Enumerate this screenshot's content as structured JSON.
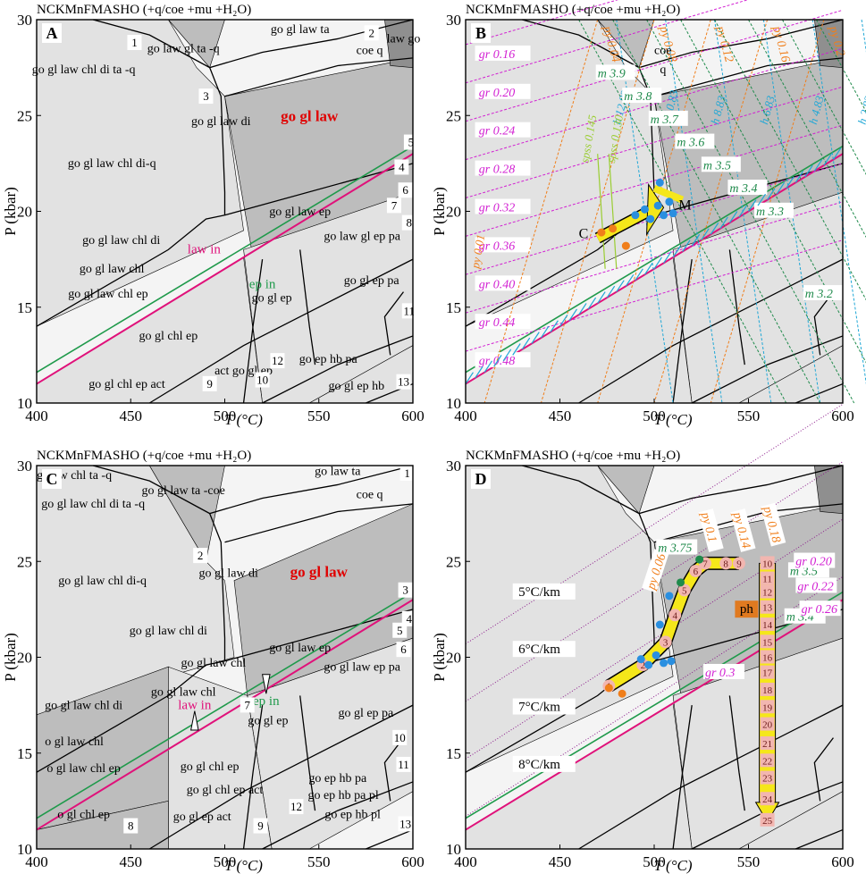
{
  "figure_title_rows": [
    "NCKMnFMASHO (+q/coe +mu +H₂O)"
  ],
  "chart_data": [
    {
      "type": "pseudosection",
      "panel": "A",
      "title": "NCKMnFMASHO (+q/coe +mu +H₂O)",
      "xlabel": "T (°C)",
      "ylabel": "P (kbar)",
      "xlim": [
        400,
        600
      ],
      "ylim": [
        10,
        30
      ],
      "xticks": [
        400,
        450,
        500,
        550,
        600
      ],
      "yticks": [
        10,
        15,
        20,
        25,
        30
      ],
      "field_labels": [
        {
          "text": "go gl law chl di ta -q",
          "T": 425,
          "P": 27.2
        },
        {
          "text": "go law gl ta -q",
          "T": 478,
          "P": 28.3
        },
        {
          "text": "go gl law ta",
          "T": 540,
          "P": 29.3
        },
        {
          "text": "coe q",
          "T": 577,
          "P": 28.2
        },
        {
          "text": "law go",
          "T": 595,
          "P": 28.8
        },
        {
          "text": "go gl law di",
          "T": 498,
          "P": 24.5
        },
        {
          "text": "go gl law",
          "T": 545,
          "P": 24.7,
          "emphasis": true
        },
        {
          "text": "go gl law chl di-q",
          "T": 440,
          "P": 22.3
        },
        {
          "text": "go gl law chl di",
          "T": 445,
          "P": 18.3
        },
        {
          "text": "go gl law ep",
          "T": 540,
          "P": 19.8
        },
        {
          "text": "go law gl ep pa",
          "T": 573,
          "P": 18.5
        },
        {
          "text": "go gl law chl",
          "T": 440,
          "P": 16.8
        },
        {
          "text": "go gl law chl ep",
          "T": 438,
          "P": 15.5
        },
        {
          "text": "go gl ep",
          "T": 525,
          "P": 15.3
        },
        {
          "text": "go gl ep pa",
          "T": 578,
          "P": 16.2
        },
        {
          "text": "go gl chl ep",
          "T": 470,
          "P": 13.3
        },
        {
          "text": "go gl chl ep act",
          "T": 448,
          "P": 10.8
        },
        {
          "text": "act go gl ep",
          "T": 510,
          "P": 11.5
        },
        {
          "text": "go ep hb pa",
          "T": 555,
          "P": 12.1
        },
        {
          "text": "go gl ep hb",
          "T": 570,
          "P": 10.7
        }
      ],
      "reaction_labels": [
        {
          "text": "law in",
          "color": "#e0117a",
          "T": 489,
          "P": 17.8
        },
        {
          "text": "ep in",
          "color": "#1f9a4b",
          "T": 520,
          "P": 16.0
        }
      ],
      "numbered_fields": [
        "1",
        "2",
        "3",
        "4",
        "5",
        "6",
        "7",
        "8",
        "9",
        "10",
        "11",
        "12",
        "13"
      ],
      "highlight_color": "#e00000"
    },
    {
      "type": "pseudosection-isopleths",
      "panel": "B",
      "title": "NCKMnFMASHO (+q/coe +mu +H₂O)",
      "xlabel": "T (°C)",
      "ylabel": "P (kbar)",
      "xlim": [
        400,
        600
      ],
      "ylim": [
        10,
        30
      ],
      "xticks": [
        400,
        450,
        500,
        550,
        600
      ],
      "yticks": [
        10,
        15,
        20,
        25,
        30
      ],
      "isopleth_series": [
        {
          "family": "gr",
          "color": "#d21fd2",
          "labels": [
            "gr 0.16",
            "gr 0.20",
            "gr 0.24",
            "gr 0.28",
            "gr 0.32",
            "gr 0.36",
            "gr 0.40",
            "gr 0.44",
            "gr 0.48"
          ]
        },
        {
          "family": "py",
          "color": "#f07e1a",
          "labels": [
            "py 0.04",
            "py 0.08",
            "py 0.12",
            "py 0.16",
            "py 0.2",
            "py 0.01"
          ]
        },
        {
          "family": "m",
          "color": "#1f8a4b",
          "labels": [
            "m 3.9",
            "m 3.8",
            "m 3.7",
            "m 3.6",
            "m 3.5",
            "m 3.4",
            "m 3.3",
            "m 3.2"
          ]
        },
        {
          "family": "h",
          "color": "#1fa7d6",
          "labels": [
            "h 12.83",
            "h 10.83",
            "h 8.83",
            "h 6.83",
            "h 4.83",
            "h 2.83"
          ]
        },
        {
          "family": "spss",
          "color": "#9acd32",
          "labels": [
            "spss 0.145",
            "spss 0.130"
          ]
        }
      ],
      "point_labels": [
        "C",
        "M"
      ],
      "extra_labels": [
        "coe",
        "q"
      ],
      "sample_points": [
        {
          "T": 472,
          "P": 18.9,
          "color": "#f07e1a"
        },
        {
          "T": 478,
          "P": 19.1,
          "color": "#f07e1a"
        },
        {
          "T": 485,
          "P": 18.2,
          "color": "#f07e1a"
        },
        {
          "T": 490,
          "P": 19.8,
          "color": "#2a8fe0"
        },
        {
          "T": 495,
          "P": 20.1,
          "color": "#2a8fe0"
        },
        {
          "T": 498,
          "P": 19.6,
          "color": "#2a8fe0"
        },
        {
          "T": 502,
          "P": 20.3,
          "color": "#2a8fe0"
        },
        {
          "T": 505,
          "P": 19.8,
          "color": "#2a8fe0"
        },
        {
          "T": 508,
          "P": 20.5,
          "color": "#2a8fe0"
        },
        {
          "T": 503,
          "P": 21.5,
          "color": "#2a8fe0"
        },
        {
          "T": 510,
          "P": 19.9,
          "color": "#2a8fe0"
        }
      ]
    },
    {
      "type": "pseudosection",
      "panel": "C",
      "title": "NCKMnFMASHO (+q/coe +mu +H₂O)",
      "xlabel": "T (°C)",
      "ylabel": "P (kbar)",
      "xlim": [
        400,
        600
      ],
      "ylim": [
        10,
        30
      ],
      "xticks": [
        400,
        450,
        500,
        550,
        600
      ],
      "yticks": [
        10,
        15,
        20,
        25,
        30
      ],
      "field_labels": [
        {
          "text": "gl law chl ta -q",
          "T": 420,
          "P": 29.3
        },
        {
          "text": "go gl law ta -coe",
          "T": 478,
          "P": 28.5
        },
        {
          "text": "go law ta",
          "T": 560,
          "P": 29.5
        },
        {
          "text": "coe q",
          "T": 577,
          "P": 28.3
        },
        {
          "text": "go gl law chl di ta -q",
          "T": 430,
          "P": 27.8
        },
        {
          "text": "go gl law di",
          "T": 502,
          "P": 24.2
        },
        {
          "text": "go gl law",
          "T": 550,
          "P": 24.2,
          "emphasis": true
        },
        {
          "text": "go gl law chl di-q",
          "T": 435,
          "P": 23.8
        },
        {
          "text": "go gl law chl di",
          "T": 470,
          "P": 21.2
        },
        {
          "text": "go gl law chl",
          "T": 494,
          "P": 19.5
        },
        {
          "text": "go gl law ep",
          "T": 540,
          "P": 20.3
        },
        {
          "text": "go gl law ep pa",
          "T": 573,
          "P": 19.3
        },
        {
          "text": "go gl law chl di",
          "T": 425,
          "P": 17.3
        },
        {
          "text": "go gl law chl",
          "T": 478,
          "P": 18.0
        },
        {
          "text": "go gl ep",
          "T": 523,
          "P": 16.5
        },
        {
          "text": "go gl ep pa",
          "T": 575,
          "P": 16.9
        },
        {
          "text": "o gl law chl",
          "T": 420,
          "P": 15.4
        },
        {
          "text": "o gl law chl ep",
          "T": 425,
          "P": 14.0
        },
        {
          "text": "go gl chl ep",
          "T": 492,
          "P": 14.1
        },
        {
          "text": "go gl chl ep act",
          "T": 500,
          "P": 12.9
        },
        {
          "text": "go gl ep act",
          "T": 488,
          "P": 11.5
        },
        {
          "text": "o gl chl ep",
          "T": 425,
          "P": 11.6
        },
        {
          "text": "go ep hb pa",
          "T": 560,
          "P": 13.5
        },
        {
          "text": "go ep hb pa pl",
          "T": 563,
          "P": 12.6
        },
        {
          "text": "go ep hb pl",
          "T": 568,
          "P": 11.6
        }
      ],
      "reaction_labels": [
        {
          "text": "law in",
          "color": "#e0117a",
          "T": 484,
          "P": 17.3
        },
        {
          "text": "ep in",
          "color": "#1f9a4b",
          "T": 522,
          "P": 17.5
        }
      ],
      "numbered_fields": [
        "1",
        "2",
        "3",
        "4",
        "5",
        "6",
        "7",
        "8",
        "9",
        "10",
        "11",
        "12",
        "13"
      ],
      "highlight_color": "#e00000"
    },
    {
      "type": "pseudosection-pt-path",
      "panel": "D",
      "title": "NCKMnFMASHO (+q/coe +mu +H₂O)",
      "xlabel": "T (°C)",
      "ylabel": "P (kbar)",
      "xlim": [
        400,
        600
      ],
      "ylim": [
        10,
        30
      ],
      "xticks": [
        400,
        450,
        500,
        550,
        600
      ],
      "yticks": [
        10,
        15,
        20,
        25,
        30
      ],
      "geotherms": [
        "5°C/km",
        "6°C/km",
        "7°C/km",
        "8°C/km"
      ],
      "isopleth_labels": [
        "py 0.06",
        "py 0.1",
        "py 0.14",
        "py 0.18",
        "m 3.75",
        "m 3.5",
        "m 3.4",
        "gr 0.20",
        "gr 0.22",
        "gr 0.26",
        "gr 0.3"
      ],
      "mineral_label": "ph",
      "prograde_steps": [
        {
          "n": "1",
          "T": 476,
          "P": 18.5
        },
        {
          "n": "2",
          "T": 494,
          "P": 19.6
        },
        {
          "n": "3",
          "T": 506,
          "P": 20.8
        },
        {
          "n": "4",
          "T": 511,
          "P": 22.2
        },
        {
          "n": "5",
          "T": 516,
          "P": 23.5
        },
        {
          "n": "6",
          "T": 522,
          "P": 24.5
        },
        {
          "n": "7",
          "T": 527,
          "P": 24.9
        },
        {
          "n": "8",
          "T": 538,
          "P": 24.9
        },
        {
          "n": "9",
          "T": 545,
          "P": 24.9
        }
      ],
      "retrograde_steps": [
        {
          "n": "10",
          "T": 560,
          "P": 24.9
        },
        {
          "n": "11",
          "T": 560,
          "P": 24.1
        },
        {
          "n": "12",
          "T": 560,
          "P": 23.4
        },
        {
          "n": "13",
          "T": 560,
          "P": 22.6
        },
        {
          "n": "14",
          "T": 560,
          "P": 21.7
        },
        {
          "n": "15",
          "T": 560,
          "P": 20.8
        },
        {
          "n": "16",
          "T": 560,
          "P": 20.0
        },
        {
          "n": "17",
          "T": 560,
          "P": 19.2
        },
        {
          "n": "18",
          "T": 560,
          "P": 18.3
        },
        {
          "n": "19",
          "T": 560,
          "P": 17.4
        },
        {
          "n": "20",
          "T": 560,
          "P": 16.5
        },
        {
          "n": "21",
          "T": 560,
          "P": 15.5
        },
        {
          "n": "22",
          "T": 560,
          "P": 14.6
        },
        {
          "n": "23",
          "T": 560,
          "P": 13.7
        },
        {
          "n": "24",
          "T": 560,
          "P": 12.6
        },
        {
          "n": "25",
          "T": 560,
          "P": 11.5
        }
      ],
      "sample_points": [
        {
          "T": 476,
          "P": 18.4,
          "color": "#f07e1a"
        },
        {
          "T": 483,
          "P": 18.1,
          "color": "#f07e1a"
        },
        {
          "T": 493,
          "P": 19.9,
          "color": "#2a8fe0"
        },
        {
          "T": 497,
          "P": 19.6,
          "color": "#2a8fe0"
        },
        {
          "T": 501,
          "P": 20.1,
          "color": "#2a8fe0"
        },
        {
          "T": 505,
          "P": 19.7,
          "color": "#2a8fe0"
        },
        {
          "T": 509,
          "P": 19.8,
          "color": "#2a8fe0"
        },
        {
          "T": 503,
          "P": 21.7,
          "color": "#2a8fe0"
        },
        {
          "T": 508,
          "P": 23.2,
          "color": "#2a8fe0"
        },
        {
          "T": 514,
          "P": 23.9,
          "color": "#1f8a4b"
        },
        {
          "T": 524,
          "P": 25.1,
          "color": "#1f8a4b"
        }
      ]
    }
  ],
  "colors": {
    "field_light": "#e2e2e2",
    "field_mid": "#bdbdbd",
    "field_dark": "#8f8f8f",
    "law_in": "#e0117a",
    "ep_in": "#1f9a4b",
    "arrow_fill": "#f5e71a",
    "step_fill": "#f2b6b0"
  }
}
